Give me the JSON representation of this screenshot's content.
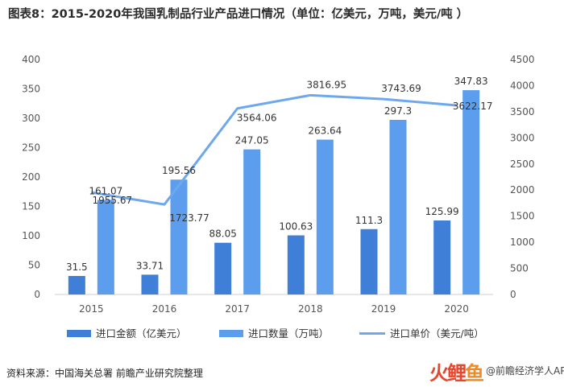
{
  "title": "图表8：2015-2020年我国乳制品行业产品进口情况（单位：亿美元，万吨，美元/吨 ）",
  "source": "资料来源：中国海关总署 前瞻产业研究院整理",
  "brand": {
    "logo": "火鲤",
    "logo_accent": "鱼",
    "text": "@前瞻经济学人APP"
  },
  "colors": {
    "import_value": "#3f7fd7",
    "import_volume": "#5c9ded",
    "unit_price": "#6da8ee"
  },
  "chart_data": {
    "type": "bar",
    "categories": [
      "2015",
      "2016",
      "2017",
      "2018",
      "2019",
      "2020"
    ],
    "series": [
      {
        "name": "进口金额（亿美元）",
        "kind": "bar",
        "axis": "left",
        "values": [
          31.5,
          33.71,
          88.05,
          100.63,
          111.3,
          125.99
        ],
        "labels": [
          "31.5",
          "33.71",
          "88.05",
          "100.63",
          "111.3",
          "125.99"
        ]
      },
      {
        "name": "进口数量（万吨）",
        "kind": "bar",
        "axis": "left",
        "values": [
          161.07,
          195.56,
          247.05,
          263.64,
          297.3,
          347.83
        ],
        "labels": [
          "161.07",
          "195.56",
          "247.05",
          "263.64",
          "297.3",
          "347.83"
        ]
      },
      {
        "name": "进口单价（美元/吨）",
        "kind": "line",
        "axis": "right",
        "values": [
          1955.67,
          1723.77,
          3564.06,
          3816.95,
          3743.69,
          3622.17
        ],
        "labels": [
          "1955.67",
          "1723.77",
          "3564.06",
          "3816.95",
          "3743.69",
          "3622.17"
        ]
      }
    ],
    "y_left": {
      "min": 0,
      "max": 400,
      "ticks": [
        "0",
        "50",
        "100",
        "150",
        "200",
        "250",
        "300",
        "350",
        "400"
      ]
    },
    "y_right": {
      "min": 0,
      "max": 4500,
      "ticks": [
        "0",
        "500",
        "1000",
        "1500",
        "2000",
        "2500",
        "3000",
        "3500",
        "4000",
        "4500"
      ]
    },
    "grid": false,
    "legend_position": "bottom"
  }
}
